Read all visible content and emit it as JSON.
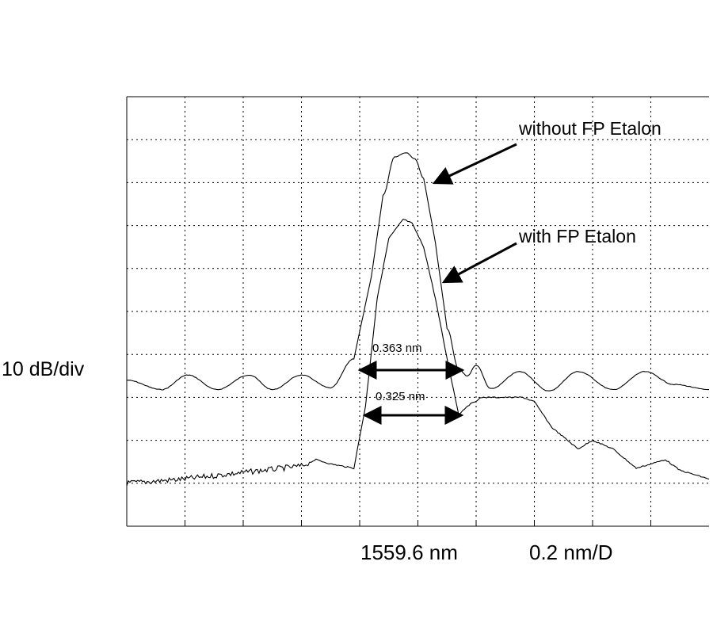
{
  "chart_data": {
    "type": "line",
    "ylabel": "10 dB/div",
    "x_center_label": "1559.6 nm",
    "x_scale_label": "0.2 nm/D",
    "x_center_nm": 1559.6,
    "x_per_div_nm": 0.2,
    "xlim_nm": [
      1558.6,
      1560.6
    ],
    "y_per_div_dB": 10,
    "ylim_div": [
      0,
      10
    ],
    "grid": true,
    "series": [
      {
        "name": "without FP Etalon",
        "x_nm": [
          1558.6,
          1558.72,
          1558.81,
          1558.91,
          1559.02,
          1559.1,
          1559.2,
          1559.3,
          1559.38,
          1559.44,
          1559.48,
          1559.52,
          1559.56,
          1559.59,
          1559.62,
          1559.66,
          1559.7,
          1559.74,
          1559.77,
          1559.8,
          1559.85,
          1559.95,
          1560.05,
          1560.15,
          1560.27,
          1560.38,
          1560.48,
          1560.6
        ],
        "y_div": [
          3.4,
          3.18,
          3.52,
          3.18,
          3.52,
          3.18,
          3.52,
          3.22,
          3.9,
          5.8,
          7.7,
          8.6,
          8.7,
          8.55,
          8.1,
          6.6,
          4.6,
          3.65,
          3.5,
          3.75,
          3.2,
          3.6,
          3.15,
          3.6,
          3.18,
          3.6,
          3.3,
          3.18
        ],
        "label": "without FP Etalon",
        "width_label": "0.363 nm"
      },
      {
        "name": "with FP Etalon",
        "x_nm": [
          1558.6,
          1558.8,
          1559.0,
          1559.2,
          1559.25,
          1559.3,
          1559.38,
          1559.42,
          1559.46,
          1559.5,
          1559.55,
          1559.58,
          1559.62,
          1559.66,
          1559.7,
          1559.74,
          1559.77,
          1559.82,
          1559.96,
          1560.0,
          1560.06,
          1560.15,
          1560.2,
          1560.27,
          1560.35,
          1560.45,
          1560.5,
          1560.6
        ],
        "y_div": [
          1.0,
          1.1,
          1.25,
          1.4,
          1.55,
          1.45,
          1.35,
          2.8,
          5.3,
          6.7,
          7.15,
          7.05,
          6.5,
          5.3,
          3.9,
          2.6,
          2.8,
          3.0,
          3.0,
          2.9,
          2.3,
          1.8,
          2.0,
          1.8,
          1.35,
          1.55,
          1.3,
          1.1
        ],
        "label": "with FP Etalon",
        "width_label": "0.325 nm"
      }
    ]
  }
}
